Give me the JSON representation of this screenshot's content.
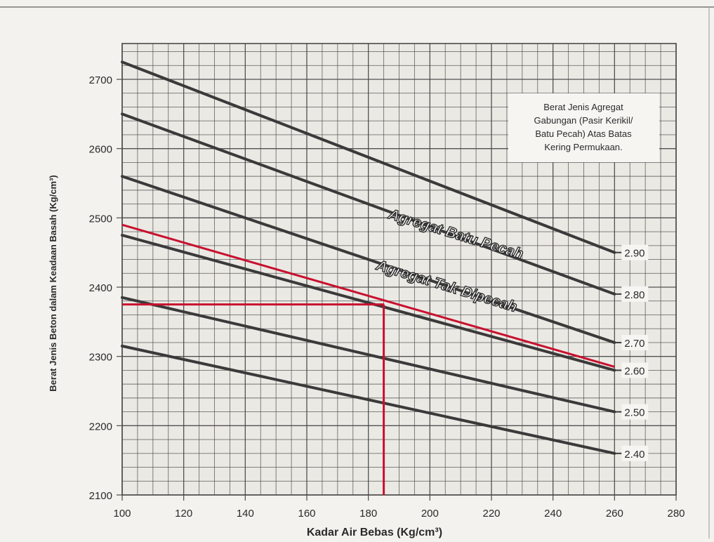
{
  "chart_data": {
    "type": "line",
    "xlabel": "Kadar Air Bebas (Kg/cm³)",
    "ylabel": "Berat Jenis Beton dalam Keadaan Basah (Kg/cm³)",
    "xlim": [
      100,
      280
    ],
    "ylim": [
      2100,
      2700
    ],
    "x_ticks": [
      100,
      120,
      140,
      160,
      180,
      200,
      220,
      240,
      260,
      280
    ],
    "y_ticks": [
      2100,
      2200,
      2300,
      2400,
      2500,
      2600,
      2700
    ],
    "grid": true,
    "legend_box": {
      "position": "top-right",
      "lines": [
        "Berat Jenis Agregat",
        "Gabungan (Pasir Kerikil/",
        "Batu Pecah) Atas Batas",
        "Kering Permukaan."
      ]
    },
    "series": [
      {
        "name": "2.90",
        "x": [
          100,
          260
        ],
        "y": [
          2725,
          2450
        ]
      },
      {
        "name": "2.80",
        "x": [
          100,
          260
        ],
        "y": [
          2650,
          2390
        ]
      },
      {
        "name": "2.70",
        "x": [
          100,
          260
        ],
        "y": [
          2560,
          2320
        ]
      },
      {
        "name": "2.60",
        "x": [
          100,
          260
        ],
        "y": [
          2475,
          2280
        ]
      },
      {
        "name": "2.50",
        "x": [
          100,
          260
        ],
        "y": [
          2385,
          2220
        ]
      },
      {
        "name": "2.40",
        "x": [
          100,
          260
        ],
        "y": [
          2315,
          2160
        ]
      }
    ],
    "annotations": [
      {
        "text": "Agregat Batu Pecah",
        "x": 208,
        "y": 2470,
        "angle": 17
      },
      {
        "text": "Agregat Tak Dipecah",
        "x": 205,
        "y": 2395,
        "angle": 17
      }
    ],
    "red_overlay": {
      "color": "#c8102e",
      "interpolated_line": {
        "x": [
          100,
          260
        ],
        "y": [
          2490,
          2285
        ]
      },
      "reading_x": 185,
      "reading_y": 2375
    },
    "colors": {
      "series": "#3a3a3a",
      "grid": "#4a4a4a",
      "text": "#2a2a2a",
      "background": "#f4f2ee",
      "plot_bg": "#ebe9e4"
    }
  }
}
